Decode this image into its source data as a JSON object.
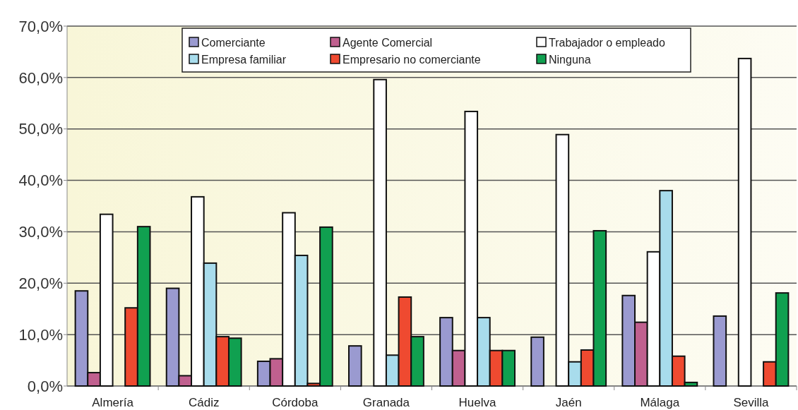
{
  "chart_data": {
    "type": "bar",
    "categories": [
      "Almería",
      "Cádiz",
      "Córdoba",
      "Granada",
      "Huelva",
      "Jaén",
      "Málaga",
      "Sevilla"
    ],
    "series": [
      {
        "name": "Comerciante",
        "color": "#9a9ad0",
        "values": [
          18.5,
          19.0,
          4.8,
          7.8,
          13.3,
          9.5,
          17.6,
          13.6
        ]
      },
      {
        "name": "Agente Comercial",
        "color": "#c0608f",
        "values": [
          2.6,
          2.0,
          5.3,
          0,
          6.9,
          0,
          12.4,
          0
        ]
      },
      {
        "name": "Trabajador o empleado",
        "color": "#ffffff",
        "values": [
          33.4,
          36.8,
          33.7,
          59.6,
          53.4,
          48.9,
          26.1,
          63.7
        ]
      },
      {
        "name": "Empresa familiar",
        "color": "#a8dcec",
        "values": [
          0,
          23.9,
          25.4,
          6.0,
          13.3,
          4.7,
          38.0,
          0
        ]
      },
      {
        "name": "Empresario no comerciante",
        "color": "#ef4a30",
        "values": [
          15.2,
          9.6,
          0.5,
          17.3,
          6.9,
          7.0,
          5.8,
          4.7
        ]
      },
      {
        "name": "Ninguna",
        "color": "#10a050",
        "values": [
          31.0,
          9.3,
          30.9,
          9.6,
          6.9,
          30.2,
          0.7,
          18.1
        ]
      }
    ],
    "ylim": [
      0,
      70
    ],
    "yticks": [
      {
        "value": 0,
        "label": "0,0%"
      },
      {
        "value": 10,
        "label": "10,0%"
      },
      {
        "value": 20,
        "label": "20,0%"
      },
      {
        "value": 30,
        "label": "30,0%"
      },
      {
        "value": 40,
        "label": "40,0%"
      },
      {
        "value": 50,
        "label": "50,0%"
      },
      {
        "value": 60,
        "label": "60,0%"
      },
      {
        "value": 70,
        "label": "70,0%"
      }
    ],
    "grid": "y",
    "legend": "top"
  }
}
